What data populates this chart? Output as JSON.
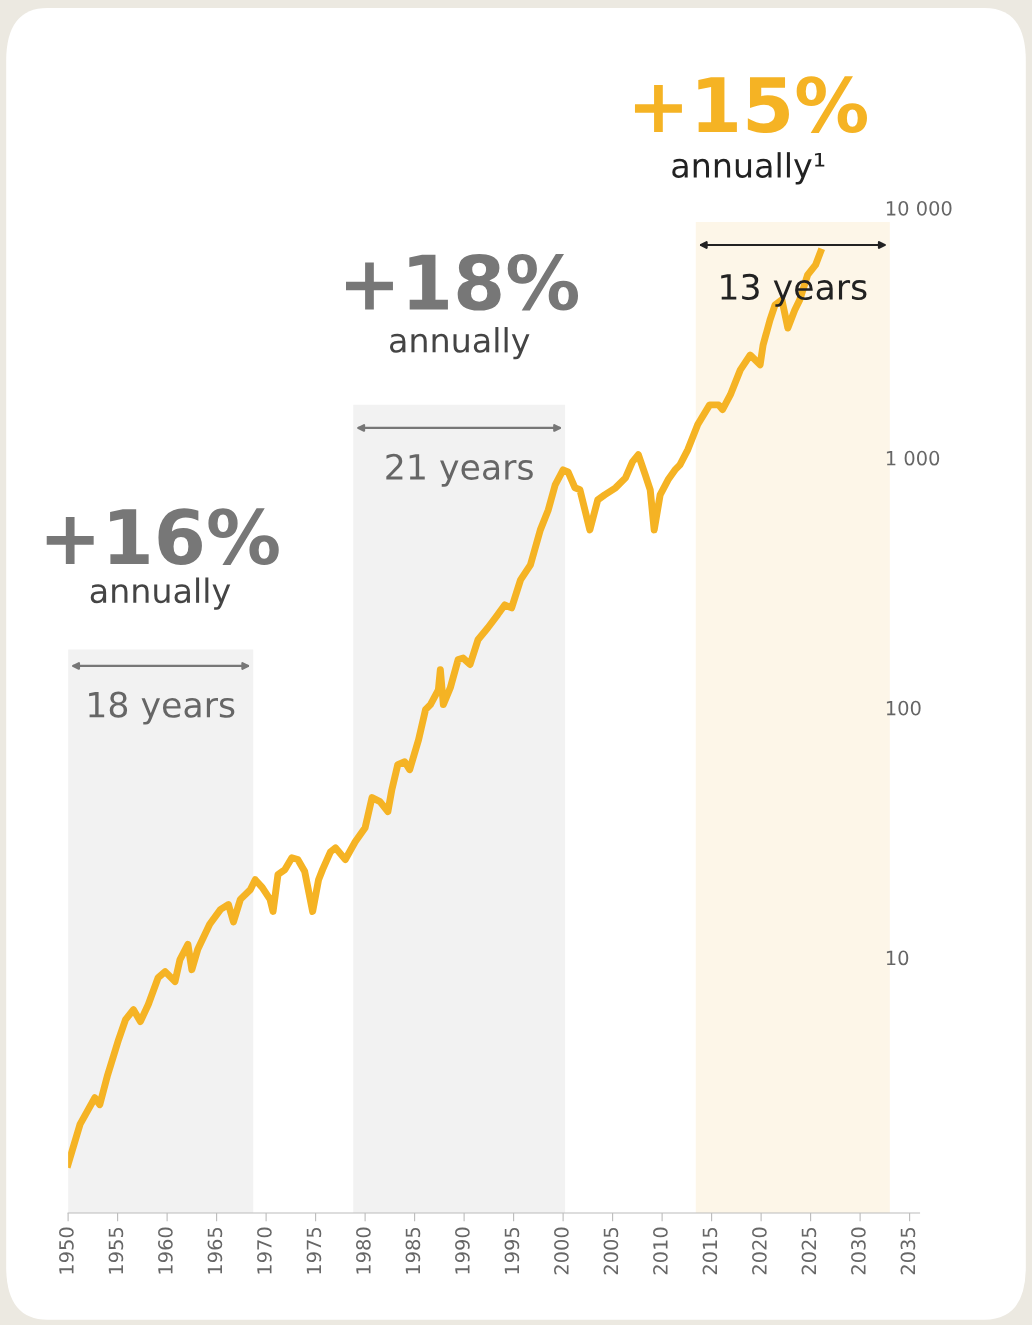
{
  "chart_data": {
    "type": "line",
    "log": "y",
    "x": [
      1950.0,
      1951.2,
      1952.7,
      1953.2,
      1954.0,
      1955.1,
      1955.8,
      1956.6,
      1957.3,
      1958.1,
      1959.1,
      1959.8,
      1960.8,
      1961.3,
      1962.1,
      1962.5,
      1963.1,
      1964.3,
      1965.4,
      1966.2,
      1966.7,
      1967.4,
      1968.4,
      1968.9,
      1969.6,
      1970.4,
      1970.7,
      1971.2,
      1971.9,
      1972.6,
      1973.2,
      1973.9,
      1974.7,
      1975.3,
      1975.7,
      1976.5,
      1977.0,
      1978.0,
      1979.0,
      1980.0,
      1980.7,
      1981.5,
      1982.3,
      1982.7,
      1983.3,
      1984.0,
      1984.5,
      1985.4,
      1986.1,
      1986.6,
      1987.4,
      1987.6,
      1987.9,
      1988.6,
      1989.4,
      1989.9,
      1990.6,
      1991.4,
      1992.4,
      1993.4,
      1994.1,
      1994.8,
      1995.7,
      1996.7,
      1997.7,
      1998.5,
      1999.2,
      2000.0,
      2000.5,
      2001.2,
      2001.7,
      2002.7,
      2003.5,
      2004.2,
      2005.3,
      2006.3,
      2007.0,
      2007.6,
      2008.3,
      2008.8,
      2009.2,
      2009.8,
      2010.6,
      2011.3,
      2011.8,
      2012.6,
      2013.6,
      2014.8,
      2015.7,
      2016.1,
      2016.9,
      2017.9,
      2018.9,
      2019.9,
      2020.2,
      2020.9,
      2021.4,
      2022.1,
      2022.7,
      2023.4,
      2023.9,
      2024.7,
      2025.5,
      2026.0
    ],
    "series": [
      {
        "color": "#f5b324",
        "values": [
          1.49,
          2.15,
          2.75,
          2.58,
          3.4,
          4.7,
          5.65,
          6.19,
          5.55,
          6.49,
          8.32,
          8.79,
          8.02,
          9.82,
          11.3,
          8.95,
          10.8,
          13.6,
          15.6,
          16.3,
          13.9,
          17.1,
          18.7,
          20.5,
          19.1,
          17.1,
          15.3,
          21.5,
          22.5,
          25.1,
          24.7,
          22.1,
          15.3,
          20.5,
          22.5,
          26.5,
          27.5,
          24.7,
          29.1,
          33.1,
          43.7,
          42.1,
          38.4,
          47.0,
          59.2,
          60.8,
          56.5,
          74.5,
          98.2,
          103,
          118,
          142,
          103,
          120,
          156,
          158,
          149,
          187,
          209,
          236,
          258,
          251,
          325,
          373,
          515,
          619,
          780,
          895,
          879,
          759,
          745,
          515,
          679,
          711,
          759,
          832,
          964,
          1030,
          855,
          745,
          515,
          711,
          817,
          895,
          938,
          1080,
          1360,
          1630,
          1630,
          1560,
          1790,
          2250,
          2580,
          2360,
          2830,
          3570,
          4090,
          4290,
          3310,
          3910,
          4290,
          5400,
          5920,
          6670
        ]
      }
    ],
    "xlim": [
      1950,
      2036
    ],
    "ylim": [
      0.95,
      10000
    ],
    "xticks": [
      1950,
      1955,
      1960,
      1965,
      1970,
      1975,
      1980,
      1985,
      1990,
      1995,
      2000,
      2005,
      2010,
      2015,
      2020,
      2025,
      2030,
      2035
    ],
    "yticks": [
      10,
      100,
      {
        "value": 1000,
        "label": "1 000"
      },
      {
        "value": 10000,
        "label": "10 000"
      }
    ],
    "bands": [
      {
        "axis": "x",
        "from": 1950,
        "to": 1968.7,
        "label": "18 years",
        "color": "#f2f2f2"
      },
      {
        "axis": "x",
        "from": 1978.8,
        "to": 2000.2,
        "label": "21 years",
        "color": "#f2f2f2"
      },
      {
        "axis": "x",
        "from": 2013.4,
        "to": 2033.0,
        "label": "13 years",
        "color": "#fdf6e8"
      }
    ],
    "annotations": [
      "+16%",
      "annually",
      "+18%",
      "annually",
      "+15%",
      "annually¹"
    ],
    "grid": false,
    "legend": false
  }
}
